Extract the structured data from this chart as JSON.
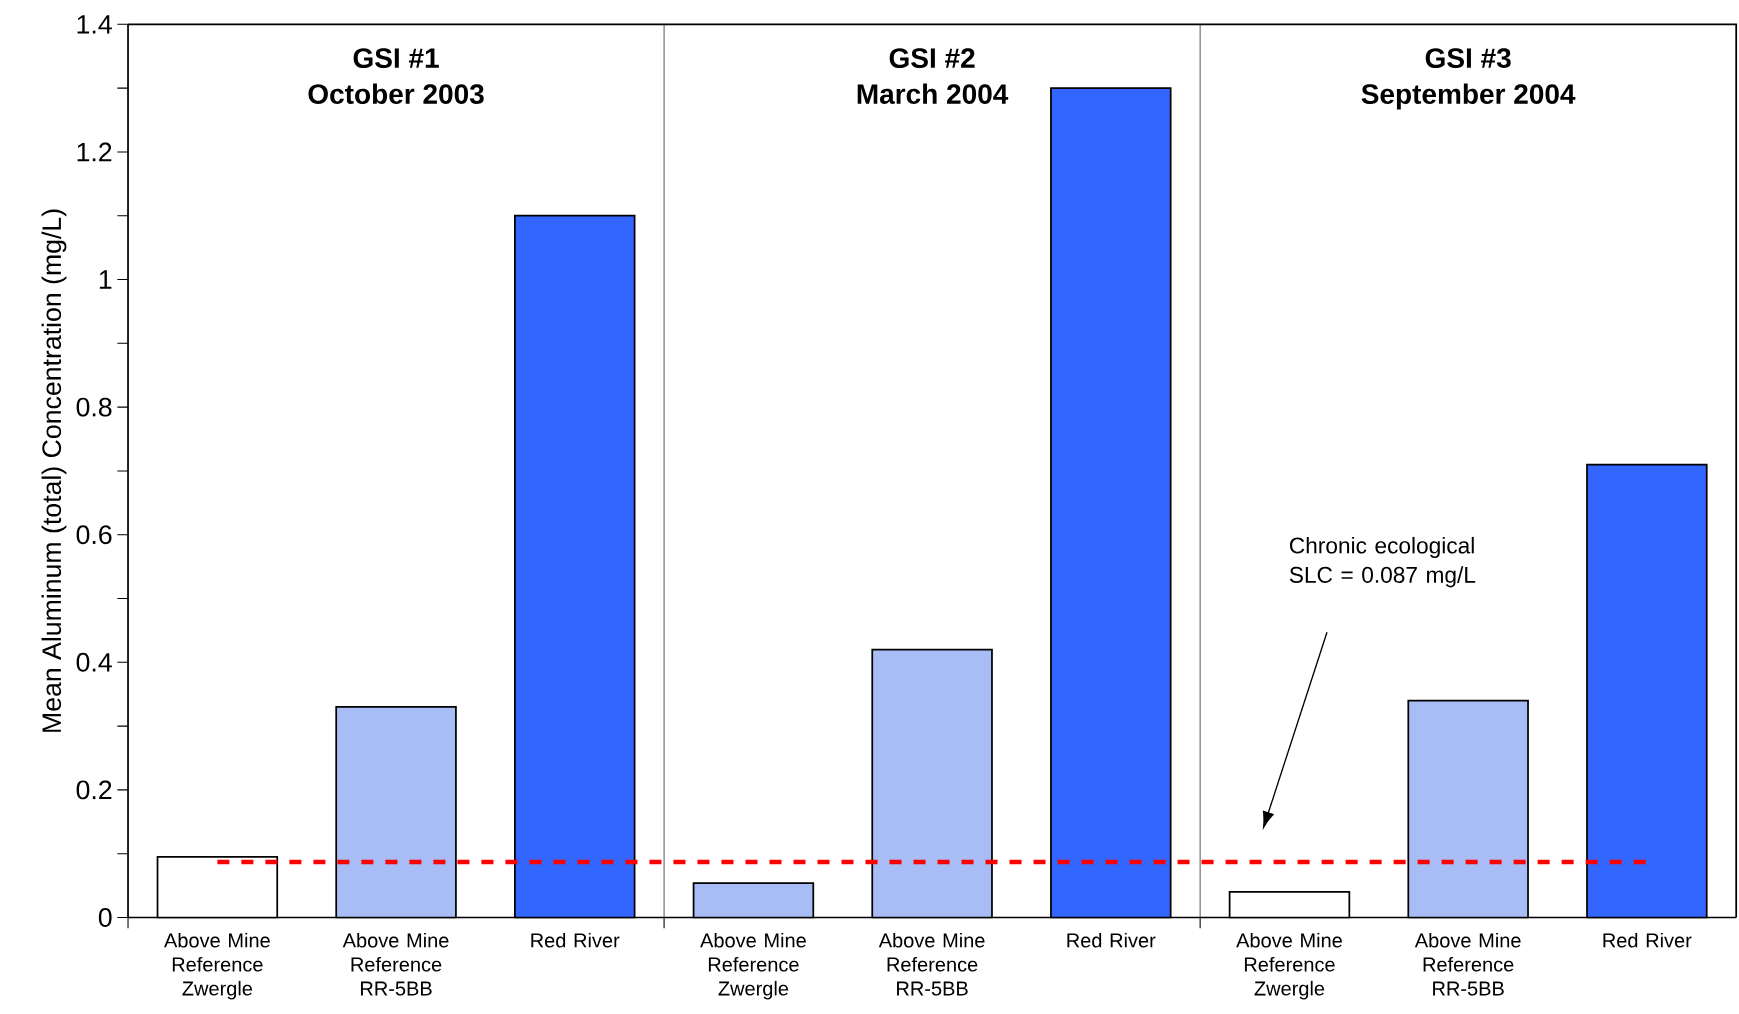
{
  "chart_data": {
    "type": "bar",
    "ylabel": "Mean Aluminum (total) Concentration (mg/L)",
    "categories": [
      "Above Mine Reference Zwergle",
      "Above Mine Reference RR-5BB",
      "Red River",
      "Above Mine Reference Zwergle",
      "Above Mine Reference RR-5BB",
      "Red River",
      "Above Mine Reference Zwergle",
      "Above Mine Reference RR-5BB",
      "Red River"
    ],
    "values": [
      0.095,
      0.33,
      1.1,
      0.054,
      0.42,
      1.3,
      0.04,
      0.34,
      0.71
    ],
    "colors": [
      "#ffffff",
      "#a8bcf5",
      "#3366ff",
      "#a8bcf5",
      "#a8bcf5",
      "#3366ff",
      "#ffffff",
      "#a8bcf5",
      "#3366ff"
    ],
    "ylim": [
      0,
      1.4
    ],
    "yticks": [
      0,
      {
        "value": 0.1,
        "label": null
      },
      0.2,
      {
        "value": 0.3,
        "label": null
      },
      0.4,
      {
        "value": 0.5,
        "label": null
      },
      0.6,
      {
        "value": 0.7,
        "label": null
      },
      0.8,
      {
        "value": 0.9,
        "label": null
      },
      1,
      {
        "value": 1.1,
        "label": null
      },
      1.2,
      {
        "value": 1.3,
        "label": null
      },
      1.4
    ],
    "ref_lines": [
      {
        "axis": "y",
        "value": 0.087,
        "color": "#ff0000",
        "line_style": "dashed"
      }
    ],
    "annotations": [
      "GSI #1",
      "October 2003",
      "GSI #2",
      "March 2004",
      "GSI #3",
      "September 2004",
      "Chronic ecological SLC = 0.087 mg/L"
    ],
    "grid": false
  }
}
